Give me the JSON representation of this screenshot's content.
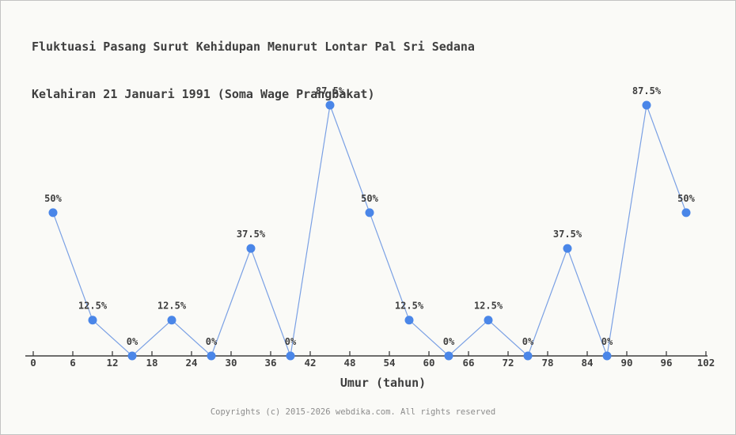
{
  "header": {
    "title_line1": "Fluktuasi Pasang Surut Kehidupan Menurut Lontar Pal Sri Sedana",
    "title_line2": "Kelahiran 21 Januari 1991 (Soma Wage Prangbakat)"
  },
  "chart_data": {
    "type": "line",
    "x": [
      3,
      9,
      15,
      21,
      27,
      33,
      39,
      45,
      51,
      57,
      63,
      69,
      75,
      81,
      87,
      93,
      99
    ],
    "values": [
      50,
      12.5,
      0,
      12.5,
      0,
      37.5,
      0,
      87.5,
      50,
      12.5,
      0,
      12.5,
      0,
      37.5,
      0,
      87.5,
      50
    ],
    "point_labels": [
      "50%",
      "12.5%",
      "0%",
      "12.5%",
      "0%",
      "37.5%",
      "0%",
      "87.5%",
      "50%",
      "12.5%",
      "0%",
      "12.5%",
      "0%",
      "37.5%",
      "0%",
      "87.5%",
      "50%"
    ],
    "x_ticks": [
      0,
      6,
      12,
      18,
      24,
      30,
      36,
      42,
      48,
      54,
      60,
      66,
      72,
      78,
      84,
      90,
      96,
      102
    ],
    "xlabel": "Umur (tahun)",
    "xlim": [
      0,
      102
    ],
    "ylim": [
      0,
      100
    ],
    "grid": false,
    "legend": "none",
    "colors": {
      "line": "#7aa0e4",
      "marker": "#4a86e8",
      "axis": "#3e3e3e",
      "tick_label": "#3e3e3e",
      "point_label": "#3e3e3e"
    }
  },
  "footer": {
    "copyright": "Copyrights (c) 2015-2026 webdika.com. All rights reserved"
  }
}
